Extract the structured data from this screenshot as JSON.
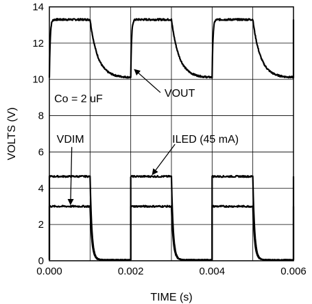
{
  "chart_data": {
    "type": "line",
    "xlabel": "TIME (s)",
    "ylabel": "VOLTS (V)",
    "xlim": [
      0,
      0.006
    ],
    "ylim": [
      0,
      14
    ],
    "x_ticks": [
      "0.000",
      "0.002",
      "0.004",
      "0.006"
    ],
    "x_tick_values": [
      0,
      0.002,
      0.004,
      0.006
    ],
    "y_ticks": [
      "0",
      "2",
      "4",
      "6",
      "8",
      "10",
      "12",
      "14"
    ],
    "y_tick_values": [
      0,
      2,
      4,
      6,
      8,
      10,
      12,
      14
    ],
    "x_grid_values": [
      0.001,
      0.002,
      0.003,
      0.004,
      0.005
    ],
    "y_grid_values": [
      2,
      4,
      6,
      8,
      10,
      12
    ],
    "grid": true,
    "period_s": 0.002,
    "duty_on_s": 0.001,
    "series": [
      {
        "name": "VOUT",
        "high": 13.3,
        "low": 10.1,
        "shape": "rc"
      },
      {
        "name": "ILED (45 mA)",
        "high": 4.65,
        "low": 0.05,
        "shape": "square"
      },
      {
        "name": "VDIM",
        "high": 3.0,
        "low": 0.05,
        "shape": "square"
      }
    ],
    "annotations": [
      {
        "text": "Co = 2 uF",
        "x": 0.00012,
        "y": 8.75
      },
      {
        "text": "VOUT",
        "x": 0.00283,
        "y": 9.05,
        "arrow_to": [
          0.00209,
          10.55
        ]
      },
      {
        "text": "VDIM",
        "x": 0.00018,
        "y": 6.5,
        "arrow_to": [
          0.00052,
          3.1
        ]
      },
      {
        "text": "ILED (45 mA)",
        "x": 0.00302,
        "y": 6.5,
        "arrow_to": [
          0.00253,
          4.75
        ]
      }
    ]
  }
}
